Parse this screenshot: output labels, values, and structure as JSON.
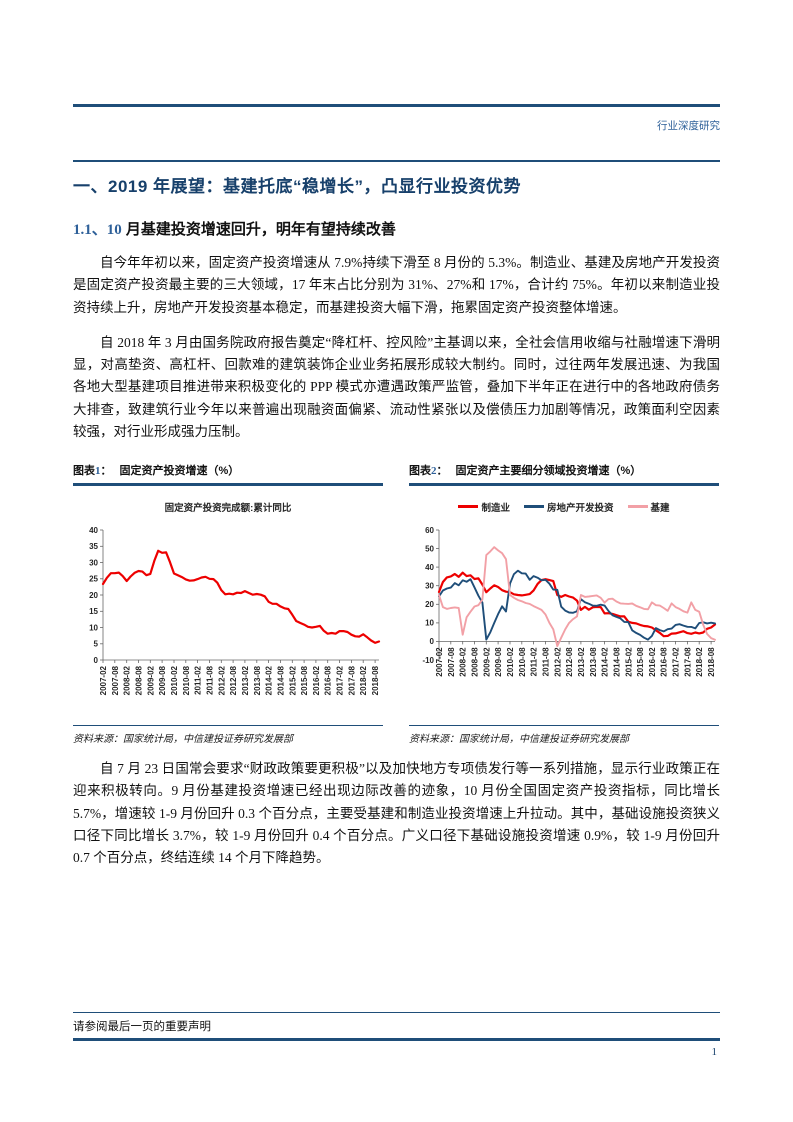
{
  "header": {
    "right_label": "行业深度研究"
  },
  "title": "一、2019 年展望：基建托底“稳增长”，凸显行业投资优势",
  "subtitle": {
    "num": "1.1、10",
    "rest": " 月基建投资增速回升，明年有望持续改善"
  },
  "paragraphs": {
    "p1": "自今年年初以来，固定资产投资增速从 7.9%持续下滑至 8 月份的 5.3%。制造业、基建及房地产开发投资是固定资产投资最主要的三大领域，17 年末占比分别为 31%、27%和 17%，合计约 75%。年初以来制造业投资持续上升，房地产开发投资基本稳定，而基建投资大幅下滑，拖累固定资产投资整体增速。",
    "p2": "自 2018 年 3 月由国务院政府报告奠定“降杠杆、控风险”主基调以来，全社会信用收缩与社融增速下滑明显，对高垫资、高杠杆、回款难的建筑装饰企业业务拓展形成较大制约。同时，过往两年发展迅速、为我国各地大型基建项目推进带来积极变化的 PPP 模式亦遭遇政策严监管，叠加下半年正在进行中的各地政府债务大排查，致建筑行业今年以来普遍出现融资面偏紧、流动性紧张以及偿债压力加剧等情况，政策面利空因素较强，对行业形成强力压制。",
    "p3": "自 7 月 23 日国常会要求“财政政策要更积极”以及加快地方专项债发行等一系列措施，显示行业政策正在迎来积极转向。9 月份基建投资增速已经出现边际改善的迹象，10 月份全国固定资产投资指标，同比增长 5.7%，增速较 1-9 月份回升 0.3 个百分点，主要受基建和制造业投资增速上升拉动。其中，基础设施投资狭义口径下同比增长 3.7%，较 1-9 月份回升 0.4 个百分点。广义口径下基础设施投资增速 0.9%，较 1-9 月份回升 0.7 个百分点，终结连续 14 个月下降趋势。"
  },
  "figures": [
    {
      "label": "图表",
      "num": "1",
      "colon": "：",
      "title": "固定资产投资增速（%）",
      "source": "资料来源：国家统计局，中信建投证券研究发展部"
    },
    {
      "label": "图表",
      "num": "2",
      "colon": "：",
      "title": "固定资产主要细分领域投资增速（%）",
      "source": "资料来源：国家统计局，中信建投证券研究发展部"
    }
  ],
  "chart_data": [
    {
      "type": "line",
      "title": "固定资产投资完成额:累计同比",
      "ylim": [
        0,
        40
      ],
      "ytick_step": 5,
      "grid": false,
      "legend_position": "top-center",
      "x_labels": [
        "2007-02",
        "2007-08",
        "2008-02",
        "2008-08",
        "2009-02",
        "2009-08",
        "2010-02",
        "2010-08",
        "2011-02",
        "2011-08",
        "2012-02",
        "2012-08",
        "2013-02",
        "2013-08",
        "2014-02",
        "2014-08",
        "2015-02",
        "2015-08",
        "2016-02",
        "2016-08",
        "2017-02",
        "2017-08",
        "2018-02",
        "2018-08"
      ],
      "xtick_every": 3,
      "series": [
        {
          "name": "固定资产投资完成额:累计同比",
          "color": "#ED0000",
          "width": 2.2,
          "values": [
            23.4,
            25.3,
            26.7,
            26.7,
            26.9,
            25.8,
            24.3,
            25.7,
            26.8,
            27.4,
            27.2,
            26.1,
            26.5,
            30.5,
            33.6,
            33.0,
            33.1,
            30.1,
            26.6,
            26.1,
            25.5,
            24.8,
            24.4,
            24.5,
            24.9,
            25.4,
            25.6,
            25.0,
            24.9,
            23.8,
            21.5,
            20.2,
            20.4,
            20.2,
            20.7,
            20.6,
            21.2,
            20.6,
            20.1,
            20.3,
            20.1,
            19.6,
            17.9,
            17.3,
            17.3,
            16.5,
            15.9,
            15.7,
            13.9,
            12.0,
            11.4,
            10.9,
            10.2,
            10.0,
            10.2,
            10.5,
            9.0,
            8.1,
            8.3,
            8.1,
            8.9,
            8.9,
            8.6,
            7.8,
            7.3,
            7.2,
            7.9,
            7.0,
            6.0,
            5.3,
            5.7
          ]
        }
      ]
    },
    {
      "type": "line",
      "title": "固定资产主要细分领域投资增速（%）",
      "ylim": [
        -10,
        60
      ],
      "ytick_step": 10,
      "grid": false,
      "legend_position": "top-center",
      "x_labels": [
        "2007-02",
        "2007-08",
        "2008-02",
        "2008-08",
        "2009-02",
        "2009-08",
        "2010-02",
        "2010-08",
        "2011-02",
        "2011-08",
        "2012-02",
        "2012-08",
        "2013-02",
        "2013-08",
        "2014-02",
        "2014-08",
        "2015-02",
        "2015-08",
        "2016-02",
        "2016-08",
        "2017-02",
        "2017-08",
        "2018-02",
        "2018-08"
      ],
      "xtick_every": 3,
      "series": [
        {
          "name": "制造业",
          "color": "#ED0000",
          "width": 2.2,
          "values": [
            26.6,
            32.0,
            34.5,
            35.0,
            36.3,
            34.8,
            37.0,
            35.2,
            35.6,
            33.6,
            34.0,
            30.6,
            26.5,
            28.5,
            30.2,
            29.3,
            27.6,
            26.8,
            26.5,
            25.4,
            25.0,
            24.8,
            25.1,
            25.5,
            27.5,
            31.0,
            33.0,
            33.5,
            33.0,
            32.5,
            25.0,
            24.0,
            25.0,
            24.2,
            23.6,
            22.0,
            17.0,
            18.6,
            17.1,
            18.4,
            18.6,
            18.5,
            15.1,
            15.2,
            14.8,
            14.1,
            13.5,
            13.5,
            10.6,
            10.0,
            9.7,
            8.9,
            8.3,
            8.1,
            7.5,
            6.0,
            4.6,
            2.8,
            3.0,
            4.2,
            4.3,
            4.9,
            5.5,
            4.5,
            4.1,
            4.8,
            4.3,
            4.8,
            6.8,
            7.5,
            9.1
          ]
        },
        {
          "name": "房地产开发投资",
          "color": "#1F4E79",
          "width": 1.9,
          "values": [
            24.3,
            27.4,
            28.5,
            29.0,
            31.4,
            30.2,
            32.9,
            32.1,
            33.5,
            29.1,
            24.6,
            20.9,
            1.0,
            4.9,
            9.9,
            14.7,
            18.9,
            16.1,
            31.1,
            36.2,
            38.1,
            36.7,
            36.5,
            33.2,
            35.2,
            34.3,
            32.9,
            33.2,
            31.1,
            27.9,
            27.8,
            18.7,
            16.6,
            15.6,
            15.4,
            16.2,
            22.8,
            21.1,
            20.3,
            19.3,
            19.2,
            19.8,
            19.3,
            16.4,
            14.1,
            13.2,
            12.4,
            10.5,
            10.4,
            6.0,
            4.6,
            3.5,
            2.0,
            1.0,
            3.0,
            7.2,
            6.1,
            5.4,
            6.6,
            6.9,
            8.9,
            9.3,
            8.5,
            7.9,
            7.8,
            7.0,
            9.9,
            10.3,
            9.7,
            10.1,
            9.7
          ]
        },
        {
          "name": "基建",
          "color": "#F2A0A6",
          "width": 1.9,
          "values": [
            25.0,
            18.5,
            17.5,
            18.0,
            18.3,
            18.0,
            3.6,
            13.0,
            16.0,
            18.8,
            19.5,
            22.5,
            46.5,
            48.5,
            50.8,
            49.0,
            47.5,
            44.3,
            25.0,
            23.5,
            22.3,
            21.6,
            20.7,
            20.2,
            19.0,
            18.0,
            17.0,
            14.5,
            10.0,
            6.5,
            -2.5,
            2.0,
            6.5,
            10.0,
            12.0,
            13.5,
            25.0,
            24.0,
            24.2,
            24.5,
            24.8,
            23.5,
            20.9,
            22.8,
            23.0,
            21.5,
            20.5,
            20.3,
            20.2,
            20.4,
            19.2,
            18.4,
            17.5,
            17.3,
            21.0,
            19.5,
            19.3,
            18.0,
            16.5,
            20.5,
            18.5,
            17.5,
            16.2,
            15.5,
            21.0,
            17.0,
            16.0,
            9.0,
            4.0,
            1.8,
            0.9
          ]
        }
      ]
    }
  ],
  "footer": {
    "disclaimer": "请参阅最后一页的重要声明",
    "page_number": "1"
  }
}
